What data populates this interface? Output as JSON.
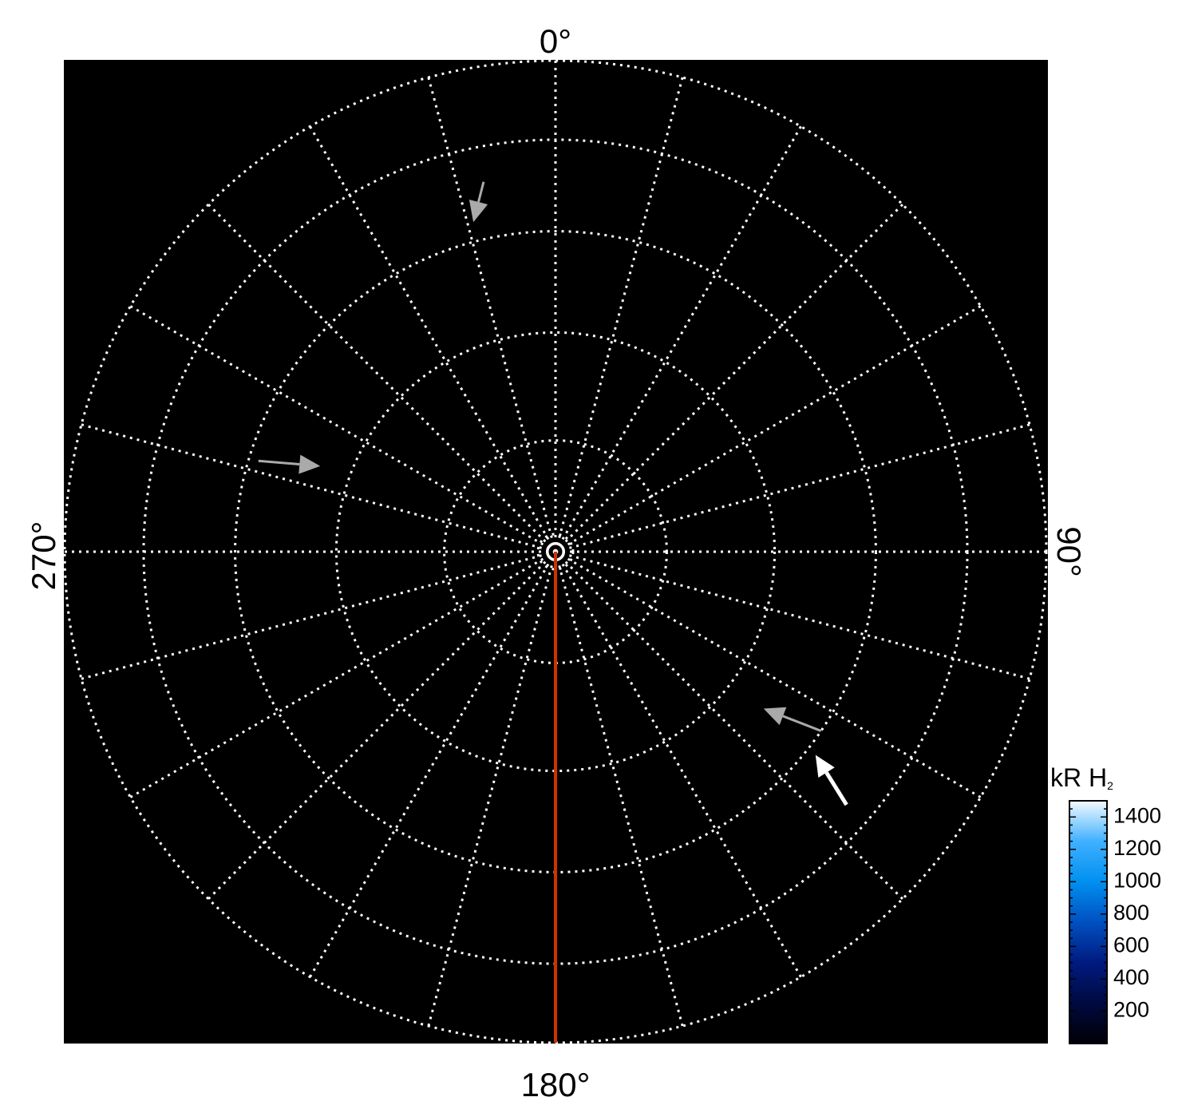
{
  "chart_data": {
    "type": "polar-image",
    "projection": "polar",
    "background_color": "#000000",
    "grid": true,
    "grid_color": "#ffffff",
    "grid_style": "dotted",
    "angle_labels": [
      {
        "angle": 0,
        "text": "0°"
      },
      {
        "angle": 90,
        "text": "90°"
      },
      {
        "angle": 180,
        "text": "180°"
      },
      {
        "angle": 270,
        "text": "270°"
      }
    ],
    "meridian_spacing_deg": 15,
    "colatitude_circles_deg": [
      10,
      20,
      30,
      40,
      50
    ],
    "highlight_meridian": {
      "angle": 180,
      "color": "#cc3300"
    },
    "arrows": [
      {
        "color": "#aaaaaa",
        "from": {
          "angle": 349,
          "colat": 36
        },
        "to": {
          "angle": 346,
          "colat": 32
        }
      },
      {
        "color": "#aaaaaa",
        "from": {
          "angle": 287,
          "colat": 29
        },
        "to": {
          "angle": 290,
          "colat": 23
        }
      },
      {
        "color": "#aaaaaa",
        "from": {
          "angle": 124,
          "colat": 30
        },
        "to": {
          "angle": 127,
          "colat": 24
        }
      },
      {
        "color": "#ffffff",
        "from": {
          "angle": 131,
          "colat": 37
        },
        "to": {
          "angle": 128,
          "colat": 31
        }
      }
    ],
    "colorbar": {
      "title": "kR H",
      "title_subscript": "2",
      "range": [
        0,
        1500
      ],
      "ticks": [
        200,
        400,
        600,
        800,
        1000,
        1200,
        1400
      ],
      "colors": [
        "#000005",
        "#000a40",
        "#001a80",
        "#0050c0",
        "#0090f0",
        "#40b0ff",
        "#f5faff"
      ]
    }
  }
}
